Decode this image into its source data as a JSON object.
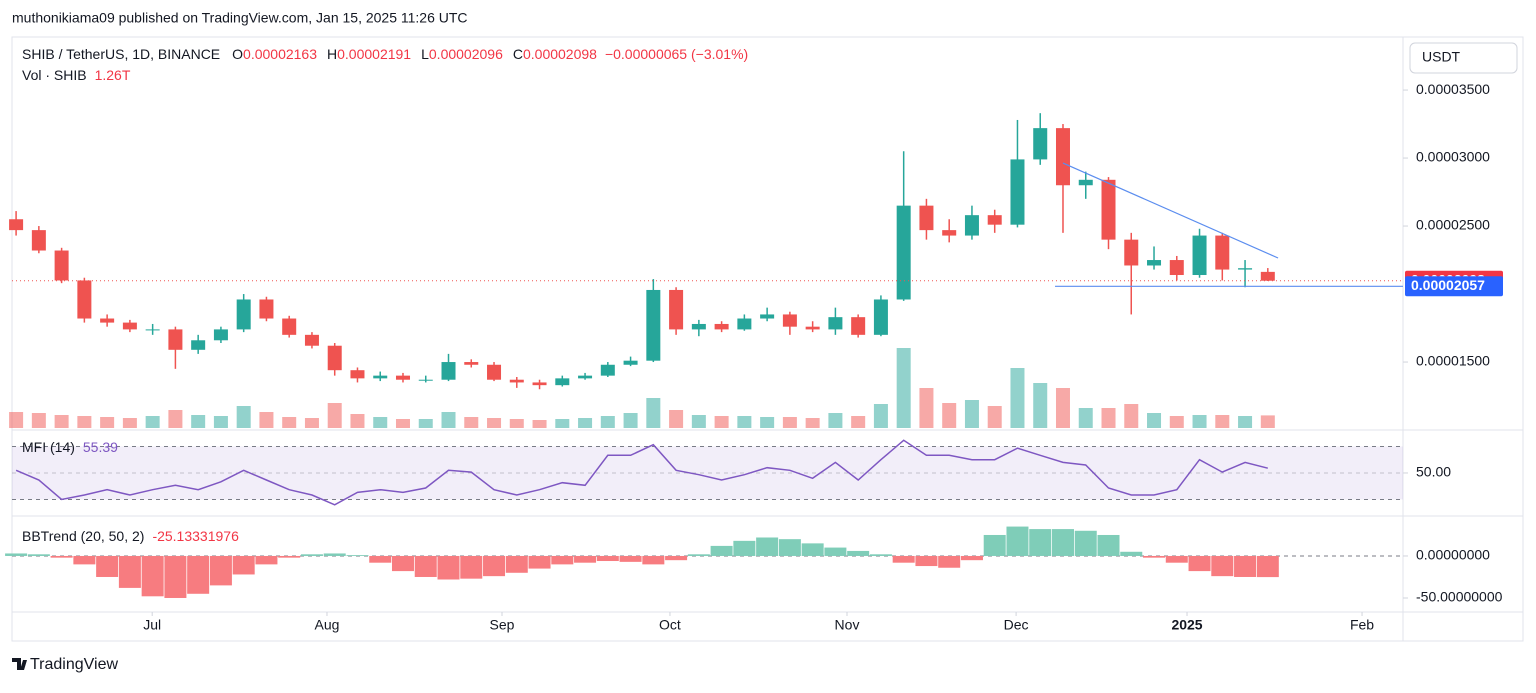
{
  "header": {
    "publisher": "muthonikiama09 published on TradingView.com, Jan 15, 2025 11:26 UTC",
    "currency": "USDT",
    "brand": "TradingView"
  },
  "chart_data": [
    {
      "type": "candlestick",
      "title": "SHIB / TetherUS, 1D, BINANCE",
      "ohlc": [
        {
          "key": "O",
          "value": "0.00002163"
        },
        {
          "key": "H",
          "value": "0.00002191"
        },
        {
          "key": "L",
          "value": "0.00002096"
        },
        {
          "key": "C",
          "value": "0.00002098"
        }
      ],
      "change": "−0.00000065 (−3.01%)",
      "up_color": "#26a69a",
      "down_color": "#ef5350",
      "candles": [
        [
          2.55e-05,
          2.61e-05,
          2.43e-05,
          2.47e-05
        ],
        [
          2.47e-05,
          2.5e-05,
          2.3e-05,
          2.32e-05
        ],
        [
          2.32e-05,
          2.34e-05,
          2.08e-05,
          2.1e-05
        ],
        [
          2.1e-05,
          2.12e-05,
          1.79e-05,
          1.82e-05
        ],
        [
          1.82e-05,
          1.85e-05,
          1.76e-05,
          1.79e-05
        ],
        [
          1.79e-05,
          1.81e-05,
          1.72e-05,
          1.74e-05
        ],
        [
          1.74e-05,
          1.78e-05,
          1.7e-05,
          1.74e-05
        ],
        [
          1.74e-05,
          1.76e-05,
          1.45e-05,
          1.59e-05
        ],
        [
          1.59e-05,
          1.7e-05,
          1.56e-05,
          1.66e-05
        ],
        [
          1.66e-05,
          1.76e-05,
          1.64e-05,
          1.74e-05
        ],
        [
          1.74e-05,
          2e-05,
          1.72e-05,
          1.96e-05
        ],
        [
          1.96e-05,
          1.98e-05,
          1.8e-05,
          1.82e-05
        ],
        [
          1.82e-05,
          1.84e-05,
          1.68e-05,
          1.7e-05
        ],
        [
          1.7e-05,
          1.72e-05,
          1.6e-05,
          1.62e-05
        ],
        [
          1.62e-05,
          1.64e-05,
          1.4e-05,
          1.44e-05
        ],
        [
          1.44e-05,
          1.46e-05,
          1.35e-05,
          1.38e-05
        ],
        [
          1.38e-05,
          1.43e-05,
          1.36e-05,
          1.4e-05
        ],
        [
          1.4e-05,
          1.42e-05,
          1.35e-05,
          1.37e-05
        ],
        [
          1.37e-05,
          1.4e-05,
          1.35e-05,
          1.37e-05
        ],
        [
          1.37e-05,
          1.56e-05,
          1.36e-05,
          1.5e-05
        ],
        [
          1.5e-05,
          1.52e-05,
          1.46e-05,
          1.48e-05
        ],
        [
          1.48e-05,
          1.5e-05,
          1.36e-05,
          1.37e-05
        ],
        [
          1.37e-05,
          1.39e-05,
          1.31e-05,
          1.35e-05
        ],
        [
          1.35e-05,
          1.37e-05,
          1.3e-05,
          1.33e-05
        ],
        [
          1.33e-05,
          1.4e-05,
          1.32e-05,
          1.38e-05
        ],
        [
          1.38e-05,
          1.42e-05,
          1.37e-05,
          1.4e-05
        ],
        [
          1.4e-05,
          1.5e-05,
          1.39e-05,
          1.48e-05
        ],
        [
          1.48e-05,
          1.54e-05,
          1.47e-05,
          1.51e-05
        ],
        [
          1.51e-05,
          2.11e-05,
          1.5e-05,
          2.03e-05
        ],
        [
          2.03e-05,
          2.05e-05,
          1.7e-05,
          1.74e-05
        ],
        [
          1.74e-05,
          1.81e-05,
          1.69e-05,
          1.78e-05
        ],
        [
          1.78e-05,
          1.8e-05,
          1.72e-05,
          1.74e-05
        ],
        [
          1.74e-05,
          1.85e-05,
          1.73e-05,
          1.82e-05
        ],
        [
          1.82e-05,
          1.9e-05,
          1.8e-05,
          1.85e-05
        ],
        [
          1.85e-05,
          1.87e-05,
          1.7e-05,
          1.76e-05
        ],
        [
          1.76e-05,
          1.8e-05,
          1.72e-05,
          1.74e-05
        ],
        [
          1.74e-05,
          1.9e-05,
          1.7e-05,
          1.83e-05
        ],
        [
          1.83e-05,
          1.85e-05,
          1.68e-05,
          1.7e-05
        ],
        [
          1.7e-05,
          1.99e-05,
          1.69e-05,
          1.96e-05
        ],
        [
          1.96e-05,
          3.05e-05,
          1.95e-05,
          2.65e-05
        ],
        [
          2.65e-05,
          2.7e-05,
          2.4e-05,
          2.47e-05
        ],
        [
          2.47e-05,
          2.55e-05,
          2.38e-05,
          2.43e-05
        ],
        [
          2.43e-05,
          2.65e-05,
          2.4e-05,
          2.58e-05
        ],
        [
          2.58e-05,
          2.62e-05,
          2.45e-05,
          2.51e-05
        ],
        [
          2.51e-05,
          3.28e-05,
          2.49e-05,
          2.99e-05
        ],
        [
          2.99e-05,
          3.33e-05,
          2.95e-05,
          3.22e-05
        ],
        [
          3.22e-05,
          3.25e-05,
          2.45e-05,
          2.8e-05
        ],
        [
          2.8e-05,
          2.9e-05,
          2.7e-05,
          2.84e-05
        ],
        [
          2.84e-05,
          2.86e-05,
          2.33e-05,
          2.4e-05
        ],
        [
          2.4e-05,
          2.45e-05,
          1.85e-05,
          2.21e-05
        ],
        [
          2.21e-05,
          2.35e-05,
          2.18e-05,
          2.25e-05
        ],
        [
          2.25e-05,
          2.28e-05,
          2.1e-05,
          2.14e-05
        ],
        [
          2.14e-05,
          2.48e-05,
          2.12e-05,
          2.43e-05
        ],
        [
          2.43e-05,
          2.45e-05,
          2.1e-05,
          2.18e-05
        ],
        [
          2.18e-05,
          2.25e-05,
          2.05e-05,
          2.19e-05
        ],
        [
          2.163e-05,
          2.191e-05,
          2.096e-05,
          2.098e-05
        ]
      ],
      "ylim": [
        1.015e-05,
        3.868e-05
      ],
      "yticks": [
        {
          "value": 3.5e-05,
          "label": "0.00003500"
        },
        {
          "value": 3e-05,
          "label": "0.00003000"
        },
        {
          "value": 2.5e-05,
          "label": "0.00002500"
        },
        {
          "value": 1.5e-05,
          "label": "0.00001500"
        }
      ],
      "xlim": [
        -0.18,
        60.94
      ],
      "xticks": [
        {
          "value": 5.98,
          "label": "Jul"
        },
        {
          "value": 13.66,
          "label": "Aug"
        },
        {
          "value": 21.35,
          "label": "Sep"
        },
        {
          "value": 28.73,
          "label": "Oct"
        },
        {
          "value": 36.51,
          "label": "Nov"
        },
        {
          "value": 43.94,
          "label": "Dec"
        },
        {
          "value": 51.45,
          "label": "2025"
        },
        {
          "value": 59.14,
          "label": "Feb"
        }
      ],
      "trendline": [
        {
          "x": 46.0,
          "y": 2.963e-05
        },
        {
          "x": 55.45,
          "y": 2.265e-05
        }
      ],
      "support": {
        "x": 45.65,
        "y": 2.057e-05
      },
      "line_color": "#5b8def"
    },
    {
      "type": "volume",
      "title": "Vol · SHIB",
      "legend_value": "1.26T",
      "values": [
        1.6,
        1.5,
        1.3,
        1.2,
        1.1,
        1.0,
        1.2,
        1.8,
        1.3,
        1.2,
        2.2,
        1.6,
        1.1,
        1.0,
        2.5,
        1.4,
        1.1,
        0.9,
        0.9,
        1.6,
        1.1,
        1.0,
        0.9,
        0.8,
        0.9,
        1.0,
        1.2,
        1.5,
        3.0,
        1.8,
        1.3,
        1.2,
        1.2,
        1.1,
        1.1,
        1.0,
        1.5,
        1.2,
        2.4,
        8.0,
        4.0,
        2.5,
        2.8,
        2.2,
        6.0,
        4.5,
        4.0,
        2.0,
        2.0,
        2.4,
        1.5,
        1.2,
        1.3,
        1.3,
        1.2,
        1.26
      ],
      "ylim": [
        0,
        10
      ]
    },
    {
      "type": "line",
      "title": "MFI (14)",
      "color": "#7e57c2",
      "values": [
        53,
        42,
        20,
        25,
        31,
        25,
        31,
        36,
        31,
        40,
        53,
        42,
        31,
        25,
        14,
        28,
        31,
        28,
        33,
        53,
        51,
        31,
        25,
        31,
        39,
        36,
        70,
        70,
        82,
        53,
        48,
        42,
        48,
        56,
        53,
        44,
        62,
        42,
        65,
        87,
        70,
        70,
        65,
        65,
        78,
        70,
        62,
        59,
        33,
        25,
        25,
        31,
        65,
        51,
        62,
        55.39
      ],
      "bands": [
        20,
        80
      ],
      "ylim": [
        2.4,
        96.4
      ],
      "yticks": [
        {
          "value": 50,
          "label": "50.00"
        }
      ]
    },
    {
      "type": "bar",
      "title": "BBTrend (20, 50, 2)",
      "up_color": "#7fcdb8",
      "down_color": "#f77c80",
      "values": [
        3,
        2,
        -2,
        -10,
        -25,
        -38,
        -48,
        -50,
        -45,
        -35,
        -22,
        -10,
        -2,
        2,
        3,
        1,
        -8,
        -18,
        -25,
        -28,
        -27,
        -24,
        -20,
        -15,
        -10,
        -8,
        -6,
        -7,
        -10,
        -5,
        2,
        12,
        18,
        22,
        20,
        15,
        10,
        6,
        2,
        -8,
        -12,
        -14,
        -5,
        25,
        35,
        32,
        32,
        30,
        25,
        5,
        -2,
        -8,
        -18,
        -24,
        -25,
        -25.13331976
      ],
      "ylim": [
        -64.3,
        45.2
      ],
      "yticks": [
        {
          "value": 0,
          "label": "0.00000000"
        },
        {
          "value": -50,
          "label": "-50.00000000"
        }
      ]
    }
  ]
}
